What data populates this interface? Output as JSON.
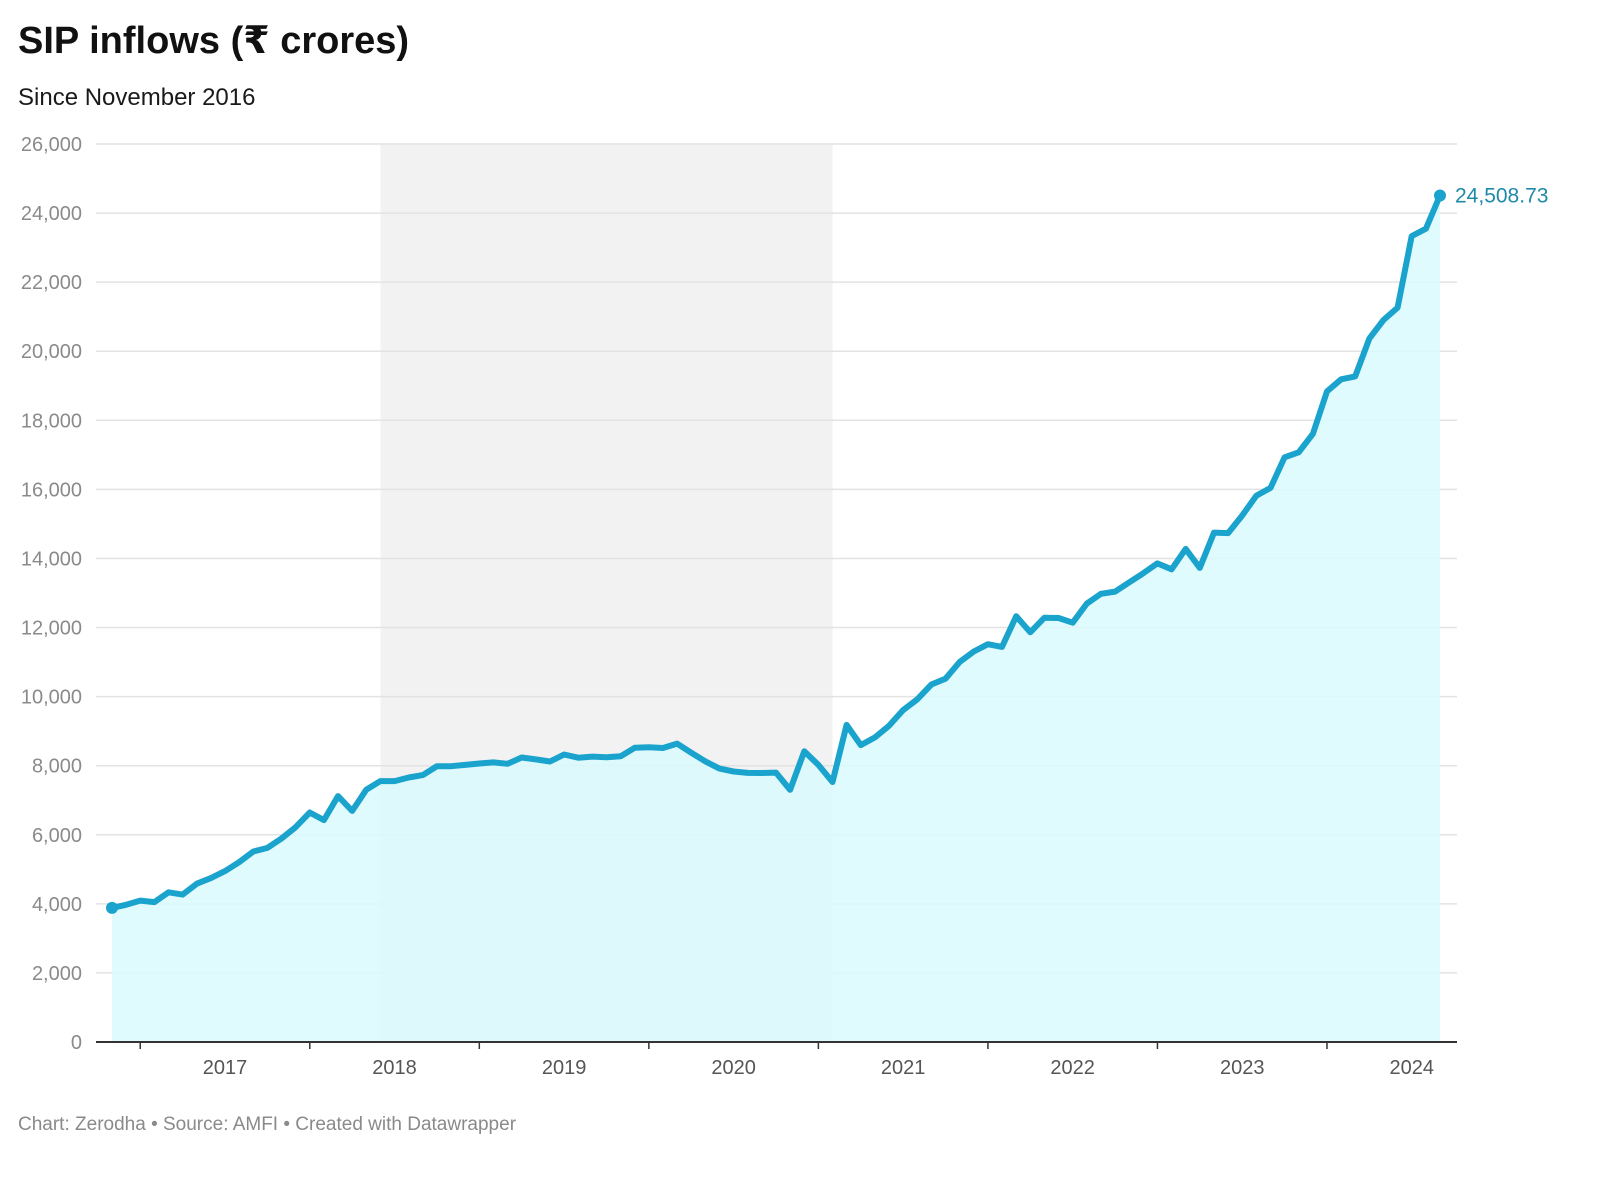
{
  "chart_data": {
    "type": "area",
    "title": "SIP inflows (₹ crores)",
    "subtitle": "Since November 2016",
    "footer": "Chart: Zerodha • Source: AMFI • Created with Datawrapper",
    "xlabel": "",
    "ylabel": "",
    "ylim": [
      0,
      26000
    ],
    "yticks": [
      0,
      2000,
      4000,
      6000,
      8000,
      10000,
      12000,
      14000,
      16000,
      18000,
      20000,
      22000,
      24000,
      26000
    ],
    "ytick_labels": [
      "0",
      "2,000",
      "4,000",
      "6,000",
      "8,000",
      "10,000",
      "12,000",
      "14,000",
      "16,000",
      "18,000",
      "20,000",
      "22,000",
      "24,000",
      "26,000"
    ],
    "xticks": [
      "2017",
      "2018",
      "2019",
      "2020",
      "2021",
      "2022",
      "2023",
      "2024"
    ],
    "grid": true,
    "highlight_range": [
      "2018-06",
      "2021-02"
    ],
    "end_label": "24,508.73",
    "colors": {
      "line": "#1aa3cc",
      "fill": "#dafafd",
      "band": "#f2f2f2",
      "end_label": "#1e8aa8"
    },
    "series": [
      {
        "x": [
          "2016-11",
          "2016-12",
          "2017-01",
          "2017-02",
          "2017-03",
          "2017-04",
          "2017-05",
          "2017-06",
          "2017-07",
          "2017-08",
          "2017-09",
          "2017-10",
          "2017-11",
          "2017-12",
          "2018-01",
          "2018-02",
          "2018-03",
          "2018-04",
          "2018-05",
          "2018-06",
          "2018-07",
          "2018-08",
          "2018-09",
          "2018-10",
          "2018-11",
          "2018-12",
          "2019-01",
          "2019-02",
          "2019-03",
          "2019-04",
          "2019-05",
          "2019-06",
          "2019-07",
          "2019-08",
          "2019-09",
          "2019-10",
          "2019-11",
          "2019-12",
          "2020-01",
          "2020-02",
          "2020-03",
          "2020-04",
          "2020-05",
          "2020-06",
          "2020-07",
          "2020-08",
          "2020-09",
          "2020-10",
          "2020-11",
          "2020-12",
          "2021-01",
          "2021-02",
          "2021-03",
          "2021-04",
          "2021-05",
          "2021-06",
          "2021-07",
          "2021-08",
          "2021-09",
          "2021-10",
          "2021-11",
          "2021-12",
          "2022-01",
          "2022-02",
          "2022-03",
          "2022-04",
          "2022-05",
          "2022-06",
          "2022-07",
          "2022-08",
          "2022-09",
          "2022-10",
          "2022-11",
          "2022-12",
          "2023-01",
          "2023-02",
          "2023-03",
          "2023-04",
          "2023-05",
          "2023-06",
          "2023-07",
          "2023-08",
          "2023-09",
          "2023-10",
          "2023-11",
          "2023-12",
          "2024-01",
          "2024-02",
          "2024-03",
          "2024-04",
          "2024-05",
          "2024-06",
          "2024-07",
          "2024-08",
          "2024-09"
        ],
        "values": [
          3884,
          3973,
          4095,
          4050,
          4335,
          4269,
          4584,
          4744,
          4947,
          5206,
          5516,
          5621,
          5893,
          6222,
          6644,
          6425,
          7119,
          6690,
          7304,
          7554,
          7554,
          7658,
          7727,
          7985,
          7985,
          8022,
          8064,
          8095,
          8055,
          8238,
          8183,
          8122,
          8324,
          8231,
          8263,
          8246,
          8273,
          8518,
          8532,
          8513,
          8641,
          8376,
          8123,
          7917,
          7831,
          7792,
          7788,
          7800,
          7302,
          8418,
          8023,
          7528,
          9182,
          8596,
          8819,
          9156,
          9609,
          9923,
          10351,
          10519,
          11005,
          11305,
          11517,
          11438,
          12328,
          11863,
          12286,
          12276,
          12140,
          12694,
          12976,
          13041,
          13306,
          13573,
          13856,
          13686,
          14276,
          13728,
          14749,
          14734,
          15245,
          15814,
          16042,
          16928,
          17073,
          17610,
          18838,
          19187,
          19271,
          20371,
          20904,
          21262,
          23332,
          23547,
          24509
        ]
      }
    ]
  }
}
